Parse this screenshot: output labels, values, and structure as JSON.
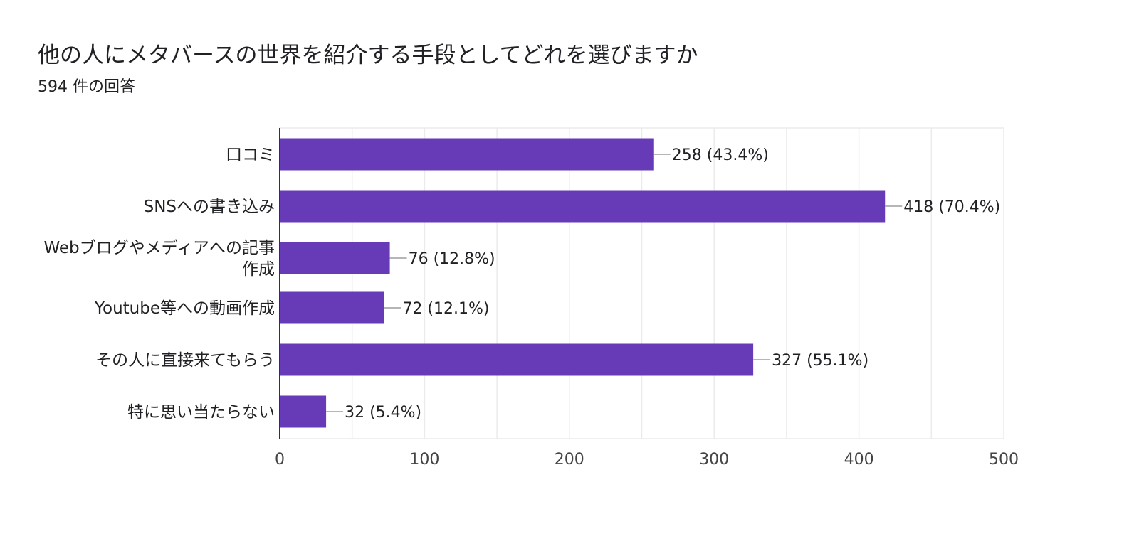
{
  "header": {
    "title": "他の人にメタバースの世界を紹介する手段としてどれを選びますか",
    "subtitle": "594 件の回答"
  },
  "chart_data": {
    "type": "bar",
    "orientation": "horizontal",
    "categories": [
      [
        "口コミ"
      ],
      [
        "SNSへの書き込み"
      ],
      [
        "Webブログやメディアへの記事",
        "作成"
      ],
      [
        "Youtube等への動画作成"
      ],
      [
        "その人に直接来てもらう"
      ],
      [
        "特に思い当たらない"
      ]
    ],
    "values": [
      258,
      418,
      76,
      72,
      327,
      32
    ],
    "value_labels": [
      "258 (43.4%)",
      "418 (70.4%)",
      "76 (12.8%)",
      "72 (12.1%)",
      "327 (55.1%)",
      "32 (5.4%)"
    ],
    "xlim": [
      0,
      500
    ],
    "xticks": [
      0,
      100,
      200,
      300,
      400,
      500
    ],
    "grid": true,
    "bar_color": "#673ab7",
    "grid_color": "#ebebeb"
  }
}
